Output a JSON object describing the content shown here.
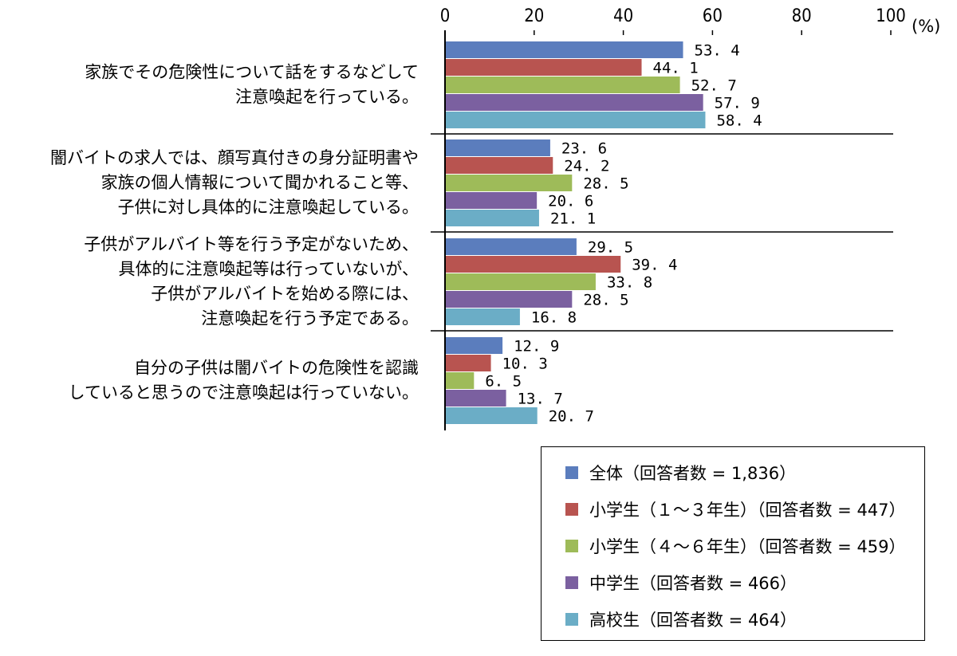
{
  "chart_data": {
    "type": "bar",
    "orientation": "horizontal",
    "unit": "(%)",
    "xlim": [
      0,
      100
    ],
    "ticks": [
      0,
      20,
      40,
      60,
      80,
      100
    ],
    "categories": [
      [
        "家族でその危険性について話をするなどして",
        "注意喚起を行っている。"
      ],
      [
        "闇バイトの求人では、顔写真付きの身分証明書や",
        "家族の個人情報について聞かれること等、",
        "子供に対し具体的に注意喚起している。"
      ],
      [
        "子供がアルバイト等を行う予定がないため、",
        "具体的に注意喚起等は行っていないが、",
        "子供がアルバイトを始める際には、",
        "注意喚起を行う予定である。"
      ],
      [
        "自分の子供は闇バイトの危険性を認識",
        "していると思うので注意喚起は行っていない。"
      ]
    ],
    "series": [
      {
        "name": "全体（回答者数 = 1,836）",
        "color": "#5b7dbd",
        "values": [
          53.4,
          23.6,
          29.5,
          12.9
        ]
      },
      {
        "name": "小学生（１～３年生）（回答者数 = 447）",
        "color": "#b85450",
        "values": [
          44.1,
          24.2,
          39.4,
          10.3
        ]
      },
      {
        "name": "小学生（４～６年生）（回答者数 = 459）",
        "color": "#9ebb59",
        "values": [
          52.7,
          28.5,
          33.8,
          6.5
        ]
      },
      {
        "name": "中学生（回答者数 = 466）",
        "color": "#7b60a0",
        "values": [
          57.9,
          20.6,
          28.5,
          13.7
        ]
      },
      {
        "name": "高校生（回答者数 = 464）",
        "color": "#6badc6",
        "values": [
          58.4,
          21.1,
          16.8,
          20.7
        ]
      }
    ],
    "grid": false,
    "legend": "bottom-right"
  }
}
